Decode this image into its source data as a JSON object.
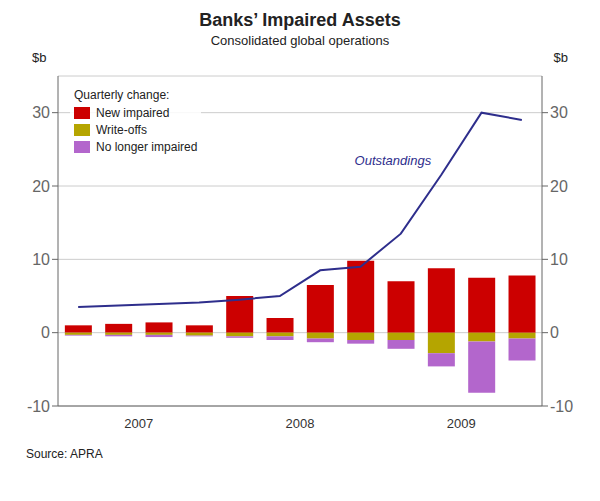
{
  "chart_data": {
    "type": "bar",
    "title": "Banks’ Impaired Assets",
    "subtitle": "Consolidated global operations",
    "ylabel": "$b",
    "y2label": "$b",
    "source": "Source: APRA",
    "legend_title": "Quarterly change:",
    "categories": [
      null,
      "2007",
      null,
      null,
      null,
      "2008",
      null,
      null,
      null,
      "2009",
      null,
      null
    ],
    "ylim": [
      -10,
      35
    ],
    "yticks": [
      -10,
      0,
      10,
      20,
      30
    ],
    "y2lim": [
      -10,
      35
    ],
    "y2ticks": [
      -10,
      0,
      10,
      20,
      30
    ],
    "grid": true,
    "stacked": true,
    "legend": "upper left",
    "series": [
      {
        "name": "New impaired",
        "type": "bar",
        "color": "#cc0000",
        "values": [
          1.0,
          1.2,
          1.4,
          1.0,
          5.0,
          2.0,
          6.5,
          9.8,
          7.0,
          8.8,
          7.5,
          7.8
        ]
      },
      {
        "name": "Write-offs",
        "type": "bar",
        "color": "#b5a500",
        "values": [
          -0.3,
          -0.3,
          -0.3,
          -0.4,
          -0.5,
          -0.5,
          -0.8,
          -1.0,
          -1.0,
          -2.8,
          -1.2,
          -0.8
        ]
      },
      {
        "name": "No longer impaired",
        "type": "bar",
        "color": "#b366cc",
        "values": [
          -0.1,
          -0.2,
          -0.3,
          -0.1,
          -0.2,
          -0.5,
          -0.5,
          -0.5,
          -1.2,
          -1.8,
          -7.0,
          -3.0
        ]
      },
      {
        "name": "Outstandings",
        "type": "line",
        "axis": "y2",
        "color": "#2e2e8c",
        "values": [
          3.5,
          3.7,
          3.9,
          4.1,
          4.5,
          5.0,
          8.5,
          9.0,
          13.5,
          21.5,
          30.0,
          29.0
        ]
      }
    ]
  }
}
